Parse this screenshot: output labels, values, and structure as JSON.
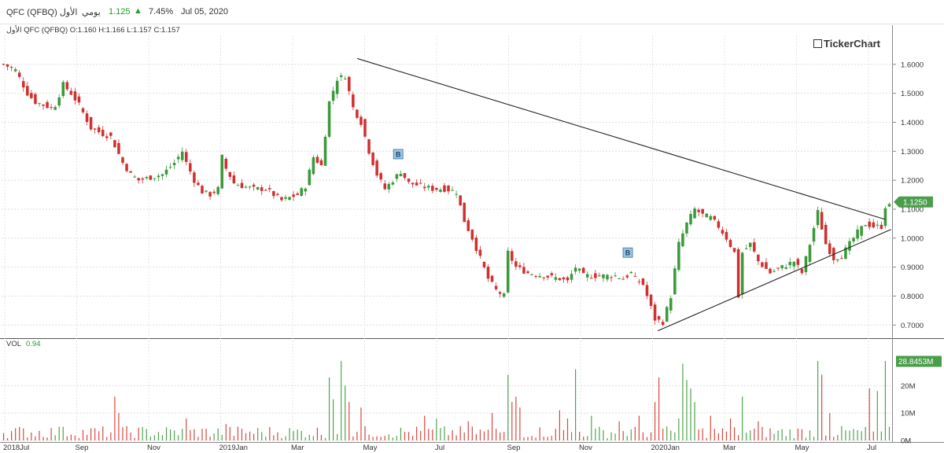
{
  "header": {
    "name": "QFC (QFBQ) الأول",
    "period": "يومي",
    "price": "1.125",
    "change": "7.45%",
    "date": "Jul 05, 2020",
    "ohlc": "الأول QFC (QFBQ)  O:1.160 H:1.166 L:1.157 C:1.157",
    "brand": "TickerChart",
    "up_color": "#1f9d2e"
  },
  "chart_data": {
    "type": "candlestick",
    "x_tick_labels": [
      "2018Jul",
      "Sep",
      "Nov",
      "2019Jan",
      "Mar",
      "May",
      "Jul",
      "Sep",
      "Nov",
      "2020Jan",
      "Mar",
      "May",
      "Jul"
    ],
    "y_tick_labels": [
      "1.6000",
      "1.5000",
      "1.4000",
      "1.3000",
      "1.2000",
      "1.1000",
      "1.0000",
      "0.9000",
      "0.8000",
      "0.7000"
    ],
    "ylim": [
      0.66,
      1.7
    ],
    "last_price_label": "1.1250",
    "close_series": {
      "date_range": [
        "2018-07-01",
        "2020-07-05"
      ],
      "anchors": [
        [
          0,
          1.6
        ],
        [
          3,
          1.58
        ],
        [
          6,
          1.5
        ],
        [
          8,
          1.47
        ],
        [
          10,
          1.46
        ],
        [
          12,
          1.45
        ],
        [
          13,
          1.46
        ],
        [
          15,
          1.53
        ],
        [
          17,
          1.5
        ],
        [
          19,
          1.46
        ],
        [
          22,
          1.38
        ],
        [
          25,
          1.36
        ],
        [
          27,
          1.35
        ],
        [
          30,
          1.26
        ],
        [
          32,
          1.22
        ],
        [
          34,
          1.2
        ],
        [
          37,
          1.21
        ],
        [
          40,
          1.22
        ],
        [
          43,
          1.26
        ],
        [
          45,
          1.3
        ],
        [
          46,
          1.26
        ],
        [
          48,
          1.2
        ],
        [
          50,
          1.16
        ],
        [
          52,
          1.15
        ],
        [
          54,
          1.17
        ],
        [
          55,
          1.28
        ],
        [
          56,
          1.24
        ],
        [
          58,
          1.19
        ],
        [
          60,
          1.18
        ],
        [
          63,
          1.17
        ],
        [
          66,
          1.17
        ],
        [
          68,
          1.15
        ],
        [
          70,
          1.13
        ],
        [
          72,
          1.14
        ],
        [
          74,
          1.15
        ],
        [
          76,
          1.18
        ],
        [
          78,
          1.28
        ],
        [
          80,
          1.25
        ],
        [
          82,
          1.47
        ],
        [
          84,
          1.55
        ],
        [
          86,
          1.56
        ],
        [
          88,
          1.45
        ],
        [
          90,
          1.4
        ],
        [
          92,
          1.3
        ],
        [
          94,
          1.22
        ],
        [
          96,
          1.17
        ],
        [
          98,
          1.2
        ],
        [
          100,
          1.23
        ],
        [
          102,
          1.19
        ],
        [
          105,
          1.18
        ],
        [
          108,
          1.17
        ],
        [
          111,
          1.17
        ],
        [
          114,
          1.16
        ],
        [
          116,
          1.06
        ],
        [
          118,
          1.0
        ],
        [
          120,
          0.93
        ],
        [
          122,
          0.86
        ],
        [
          124,
          0.82
        ],
        [
          126,
          0.8
        ],
        [
          127,
          0.95
        ],
        [
          129,
          0.9
        ],
        [
          132,
          0.88
        ],
        [
          136,
          0.87
        ],
        [
          140,
          0.86
        ],
        [
          142,
          0.85
        ],
        [
          144,
          0.9
        ],
        [
          146,
          0.87
        ],
        [
          150,
          0.87
        ],
        [
          154,
          0.87
        ],
        [
          156,
          0.86
        ],
        [
          158,
          0.88
        ],
        [
          159,
          0.86
        ],
        [
          161,
          0.84
        ],
        [
          163,
          0.76
        ],
        [
          164,
          0.72
        ],
        [
          166,
          0.71
        ],
        [
          168,
          0.8
        ],
        [
          170,
          0.98
        ],
        [
          172,
          1.05
        ],
        [
          174,
          1.1
        ],
        [
          176,
          1.08
        ],
        [
          178,
          1.07
        ],
        [
          180,
          1.04
        ],
        [
          182,
          1.0
        ],
        [
          184,
          0.95
        ],
        [
          185,
          0.8
        ],
        [
          186,
          0.95
        ],
        [
          188,
          0.98
        ],
        [
          190,
          0.92
        ],
        [
          193,
          0.88
        ],
        [
          196,
          0.9
        ],
        [
          199,
          0.92
        ],
        [
          201,
          0.88
        ],
        [
          203,
          0.98
        ],
        [
          205,
          1.09
        ],
        [
          207,
          0.98
        ],
        [
          209,
          0.93
        ],
        [
          211,
          0.94
        ],
        [
          213,
          0.98
        ],
        [
          215,
          1.02
        ],
        [
          217,
          1.05
        ],
        [
          219,
          1.04
        ],
        [
          221,
          1.04
        ],
        [
          222,
          1.11
        ]
      ]
    },
    "trendlines": [
      {
        "from": [
          "2019-04-23",
          1.62
        ],
        "to": [
          "2020-07-05",
          1.065
        ]
      },
      {
        "from": [
          "2019-12-29",
          0.68
        ],
        "to": [
          "2020-07-10",
          1.03
        ]
      }
    ],
    "markers": [
      {
        "label": "B",
        "date": "2019-05-27",
        "price": 1.29
      },
      {
        "label": "B",
        "date": "2019-12-04",
        "price": 0.95
      }
    ],
    "volume": {
      "label": "VOL",
      "value": "0.94",
      "y_tick_labels": [
        "20M",
        "10M",
        "0M"
      ],
      "ylim": [
        0,
        31
      ],
      "last_label": "28.8453M",
      "spikes": [
        [
          15,
          5
        ],
        [
          28,
          16
        ],
        [
          29,
          10
        ],
        [
          46,
          8
        ],
        [
          56,
          6
        ],
        [
          82,
          23
        ],
        [
          83,
          15
        ],
        [
          85,
          29
        ],
        [
          86,
          20
        ],
        [
          87,
          14
        ],
        [
          90,
          12
        ],
        [
          106,
          9
        ],
        [
          109,
          8
        ],
        [
          117,
          7
        ],
        [
          123,
          10
        ],
        [
          127,
          24
        ],
        [
          128,
          14
        ],
        [
          129,
          16
        ],
        [
          130,
          12
        ],
        [
          140,
          11
        ],
        [
          142,
          8
        ],
        [
          144,
          26
        ],
        [
          148,
          9
        ],
        [
          155,
          7
        ],
        [
          160,
          9
        ],
        [
          164,
          14
        ],
        [
          165,
          23
        ],
        [
          170,
          8
        ],
        [
          171,
          28
        ],
        [
          172,
          22
        ],
        [
          173,
          19
        ],
        [
          174,
          14
        ],
        [
          178,
          9
        ],
        [
          183,
          8
        ],
        [
          186,
          16
        ],
        [
          190,
          7
        ],
        [
          205,
          29
        ],
        [
          206,
          24
        ],
        [
          208,
          10
        ],
        [
          218,
          19
        ],
        [
          220,
          18
        ],
        [
          222,
          29
        ]
      ]
    }
  }
}
